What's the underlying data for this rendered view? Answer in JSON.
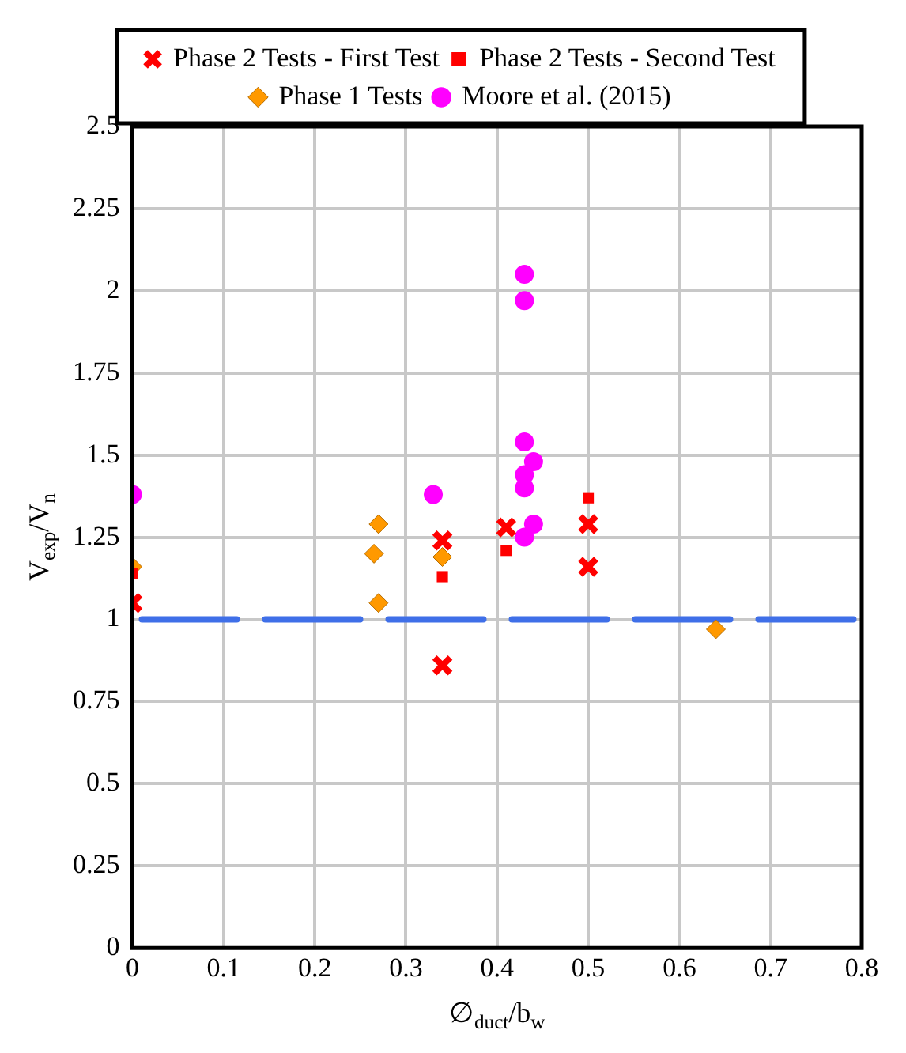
{
  "chart_data": {
    "type": "scatter",
    "xlabel": "∅$_{duct}$/b$_{w}$",
    "ylabel": "V$_{exp}$/V$_{n}$",
    "xlim": [
      0,
      0.8
    ],
    "xticks": [
      0,
      0.1,
      0.2,
      0.3,
      0.4,
      0.5,
      0.6,
      0.7,
      0.8
    ],
    "ylim": [
      0,
      2.5
    ],
    "yticks": [
      0,
      0.25,
      0.5,
      0.75,
      1,
      1.25,
      1.5,
      1.75,
      2,
      2.25,
      2.5
    ],
    "grid": true,
    "legend": "top",
    "ref_lines": [
      {
        "axis": "y",
        "value": 1,
        "color": "#3f6fe8",
        "line_style": "dashed"
      }
    ],
    "series": [
      {
        "name": "Phase 2 Tests - First Test",
        "color": "#ff0000",
        "marker": "cross",
        "x": [
          0,
          0.34,
          0.34,
          0.41,
          0.5,
          0.5
        ],
        "values": [
          1.05,
          1.24,
          0.86,
          1.28,
          1.29,
          1.16
        ]
      },
      {
        "name": "Phase 2 Tests - Second Test",
        "color": "#ff0000",
        "marker": "square",
        "x": [
          0,
          0.34,
          0.41,
          0.5
        ],
        "values": [
          1.14,
          1.13,
          1.21,
          1.37
        ]
      },
      {
        "name": "Phase 1 Tests",
        "color": "#ff9900",
        "marker": "diamond",
        "x": [
          0,
          0.265,
          0.27,
          0.27,
          0.34,
          0.64
        ],
        "values": [
          1.16,
          1.2,
          1.29,
          1.05,
          1.19,
          0.97
        ]
      },
      {
        "name": "Moore et al. (2015)",
        "color": "#ff00ff",
        "marker": "circle",
        "x": [
          0,
          0.33,
          0.43,
          0.43,
          0.43,
          0.44,
          0.43,
          0.43,
          0.44,
          0.43
        ],
        "values": [
          1.38,
          1.38,
          2.05,
          1.97,
          1.54,
          1.48,
          1.44,
          1.4,
          1.29,
          1.25
        ]
      }
    ]
  }
}
